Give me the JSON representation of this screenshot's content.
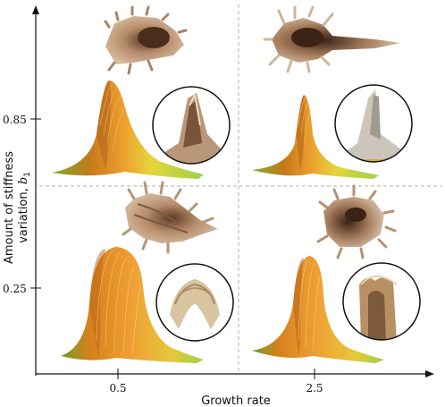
{
  "axes": {
    "x_label": "Growth rate",
    "y_label_line1": "Amount of stiffness",
    "y_label_line2": "variation, ",
    "y_symbol": "b",
    "y_subscript": "1",
    "x_ticks": [
      "0.5",
      "2.5"
    ],
    "y_ticks": [
      "0.85",
      "0.25"
    ]
  },
  "panels": [
    {
      "name": "panel-top-left",
      "growth_rate": "0.5",
      "stiffness_variation": "0.85"
    },
    {
      "name": "panel-top-right",
      "growth_rate": "2.5",
      "stiffness_variation": "0.85"
    },
    {
      "name": "panel-bottom-left",
      "growth_rate": "0.5",
      "stiffness_variation": "0.25"
    },
    {
      "name": "panel-bottom-right",
      "growth_rate": "2.5",
      "stiffness_variation": "0.25"
    }
  ],
  "colors": {
    "surface_orange": "#e8902a",
    "surface_yellow": "#e2d63a",
    "surface_green": "#8cc63f",
    "shell_tan": "#c9a483",
    "shell_dark": "#6b4a33",
    "divider": "#b0b0b0"
  }
}
